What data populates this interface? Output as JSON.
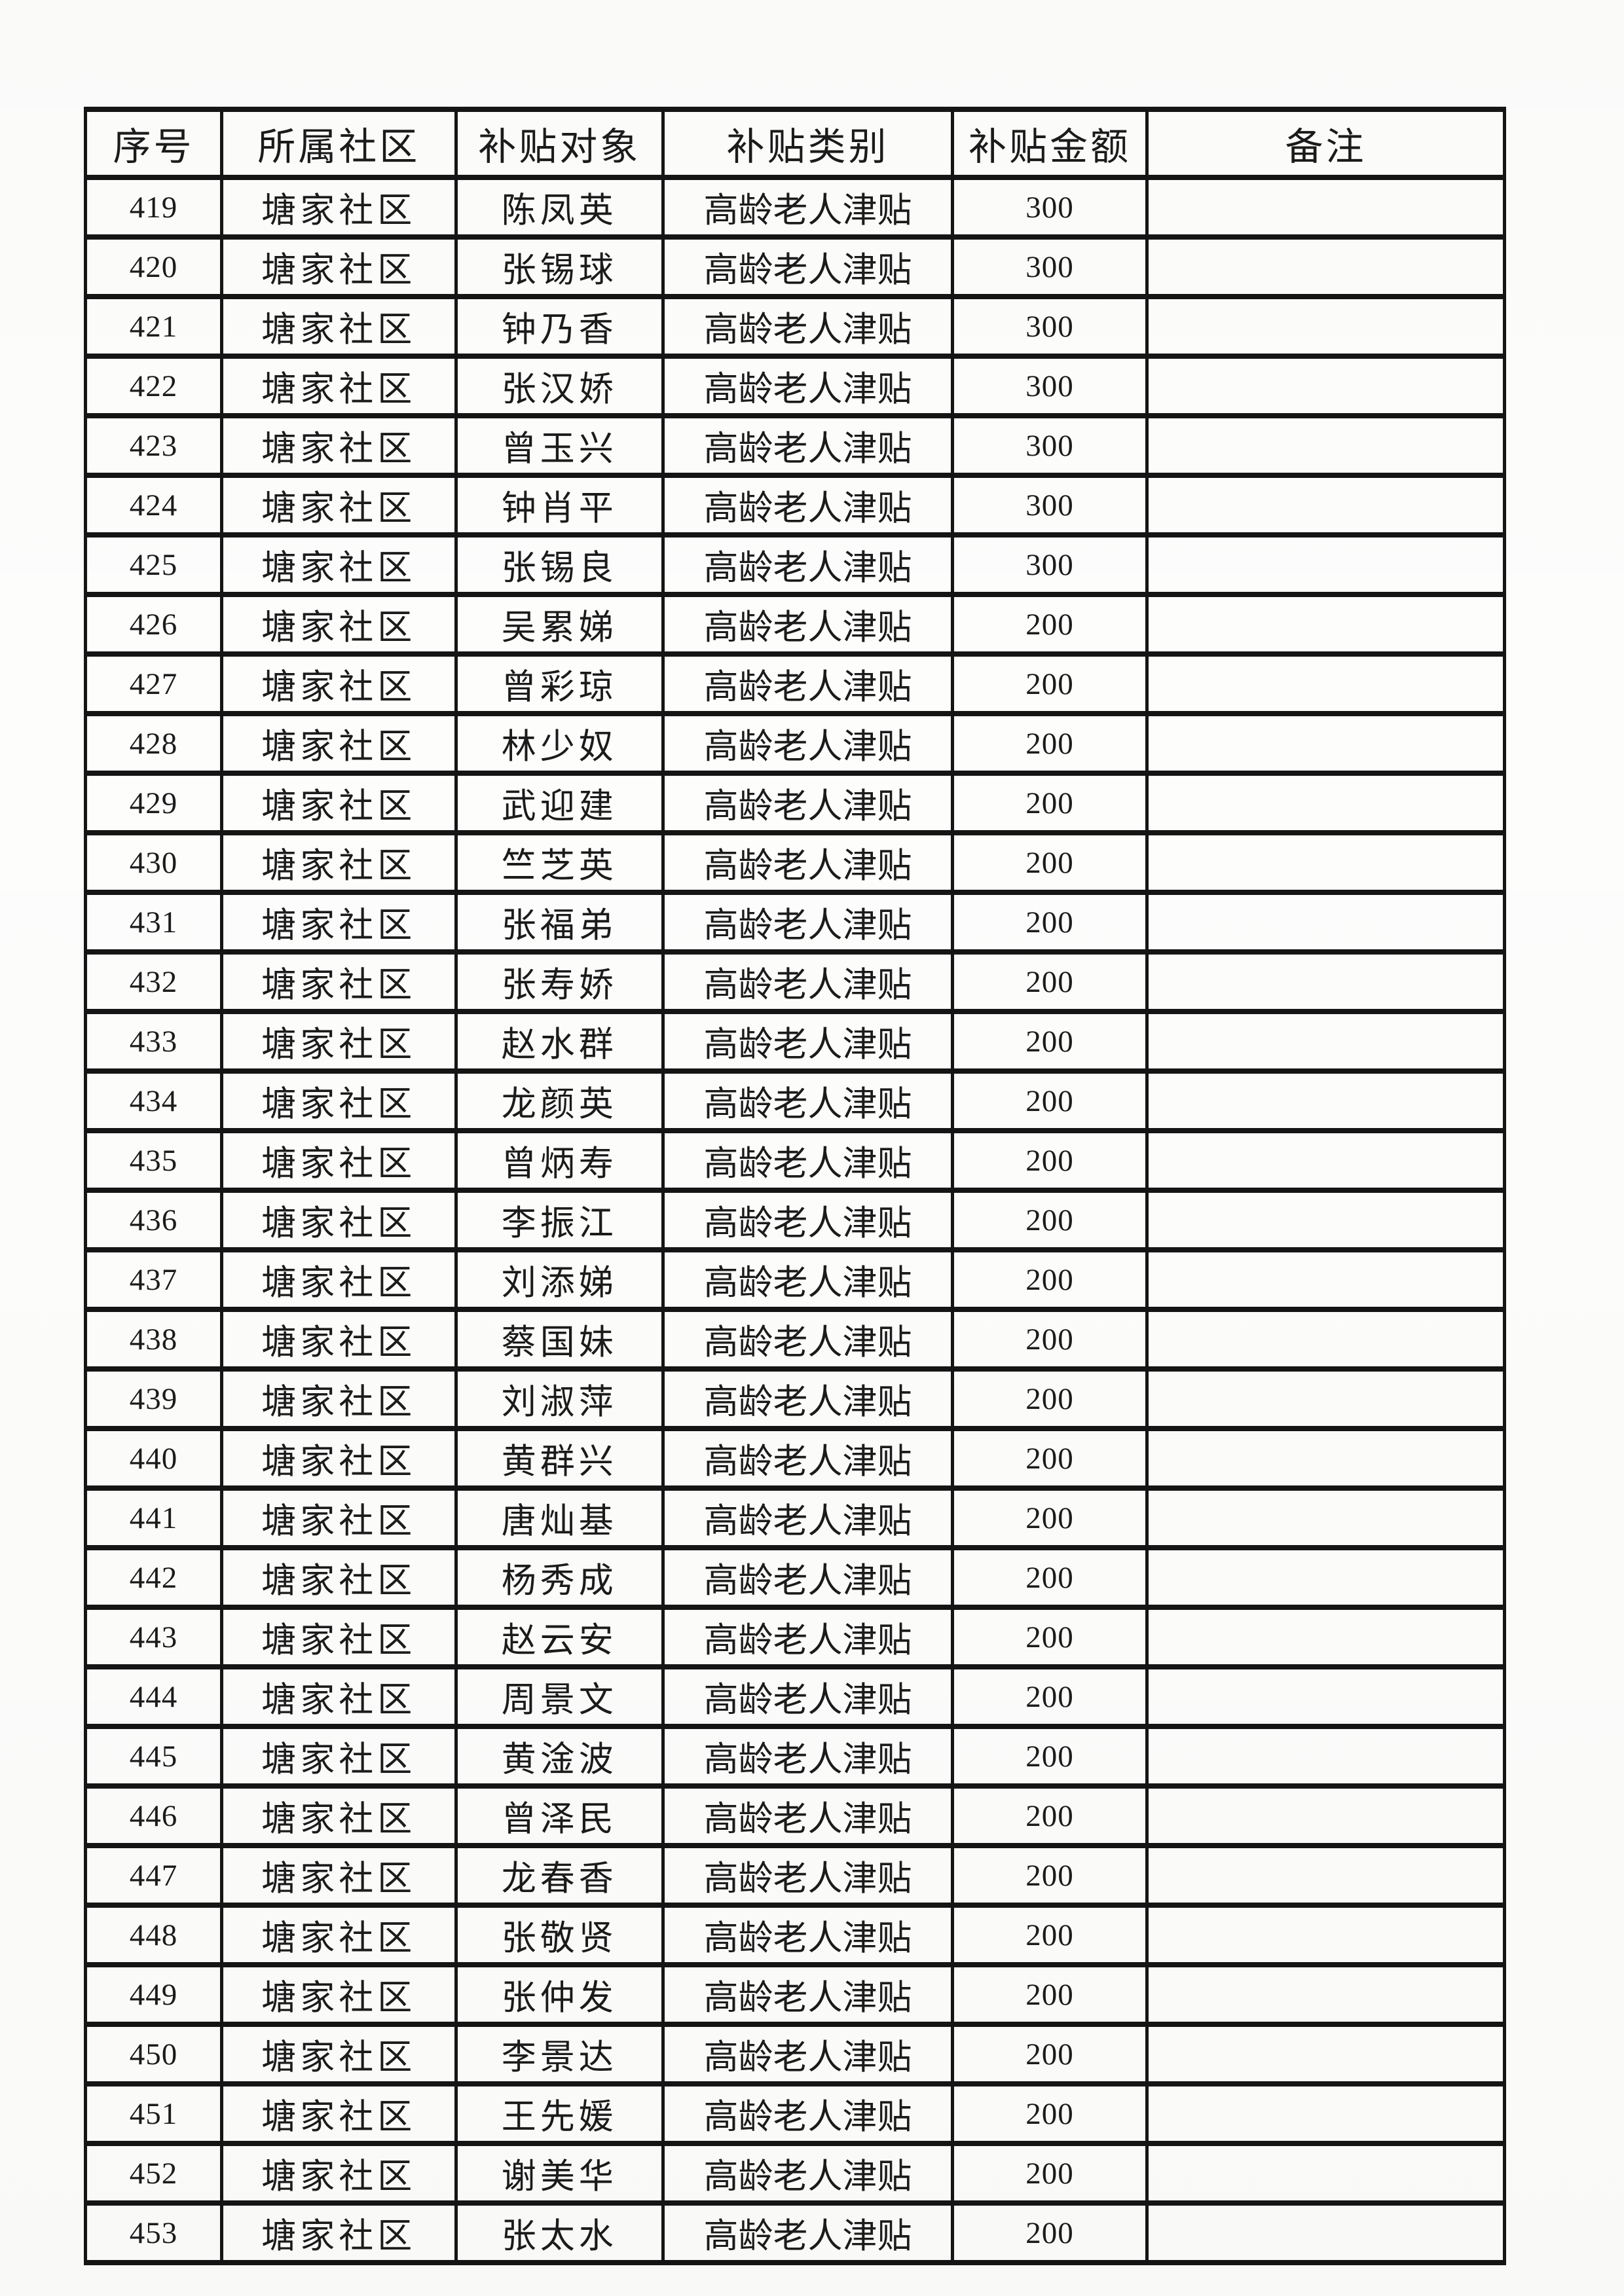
{
  "table": {
    "headers": [
      "序号",
      "所属社区",
      "补贴对象",
      "补贴类别",
      "补贴金额",
      "备注"
    ],
    "rows": [
      [
        "419",
        "塘家社区",
        "陈凤英",
        "高龄老人津贴",
        "300",
        ""
      ],
      [
        "420",
        "塘家社区",
        "张锡球",
        "高龄老人津贴",
        "300",
        ""
      ],
      [
        "421",
        "塘家社区",
        "钟乃香",
        "高龄老人津贴",
        "300",
        ""
      ],
      [
        "422",
        "塘家社区",
        "张汉娇",
        "高龄老人津贴",
        "300",
        ""
      ],
      [
        "423",
        "塘家社区",
        "曾玉兴",
        "高龄老人津贴",
        "300",
        ""
      ],
      [
        "424",
        "塘家社区",
        "钟肖平",
        "高龄老人津贴",
        "300",
        ""
      ],
      [
        "425",
        "塘家社区",
        "张锡良",
        "高龄老人津贴",
        "300",
        ""
      ],
      [
        "426",
        "塘家社区",
        "吴累娣",
        "高龄老人津贴",
        "200",
        ""
      ],
      [
        "427",
        "塘家社区",
        "曾彩琼",
        "高龄老人津贴",
        "200",
        ""
      ],
      [
        "428",
        "塘家社区",
        "林少奴",
        "高龄老人津贴",
        "200",
        ""
      ],
      [
        "429",
        "塘家社区",
        "武迎建",
        "高龄老人津贴",
        "200",
        ""
      ],
      [
        "430",
        "塘家社区",
        "竺芝英",
        "高龄老人津贴",
        "200",
        ""
      ],
      [
        "431",
        "塘家社区",
        "张福弟",
        "高龄老人津贴",
        "200",
        ""
      ],
      [
        "432",
        "塘家社区",
        "张寿娇",
        "高龄老人津贴",
        "200",
        ""
      ],
      [
        "433",
        "塘家社区",
        "赵水群",
        "高龄老人津贴",
        "200",
        ""
      ],
      [
        "434",
        "塘家社区",
        "龙颜英",
        "高龄老人津贴",
        "200",
        ""
      ],
      [
        "435",
        "塘家社区",
        "曾炳寿",
        "高龄老人津贴",
        "200",
        ""
      ],
      [
        "436",
        "塘家社区",
        "李振江",
        "高龄老人津贴",
        "200",
        ""
      ],
      [
        "437",
        "塘家社区",
        "刘添娣",
        "高龄老人津贴",
        "200",
        ""
      ],
      [
        "438",
        "塘家社区",
        "蔡国妹",
        "高龄老人津贴",
        "200",
        ""
      ],
      [
        "439",
        "塘家社区",
        "刘淑萍",
        "高龄老人津贴",
        "200",
        ""
      ],
      [
        "440",
        "塘家社区",
        "黄群兴",
        "高龄老人津贴",
        "200",
        ""
      ],
      [
        "441",
        "塘家社区",
        "唐灿基",
        "高龄老人津贴",
        "200",
        ""
      ],
      [
        "442",
        "塘家社区",
        "杨秀成",
        "高龄老人津贴",
        "200",
        ""
      ],
      [
        "443",
        "塘家社区",
        "赵云安",
        "高龄老人津贴",
        "200",
        ""
      ],
      [
        "444",
        "塘家社区",
        "周景文",
        "高龄老人津贴",
        "200",
        ""
      ],
      [
        "445",
        "塘家社区",
        "黄淦波",
        "高龄老人津贴",
        "200",
        ""
      ],
      [
        "446",
        "塘家社区",
        "曾泽民",
        "高龄老人津贴",
        "200",
        ""
      ],
      [
        "447",
        "塘家社区",
        "龙春香",
        "高龄老人津贴",
        "200",
        ""
      ],
      [
        "448",
        "塘家社区",
        "张敬贤",
        "高龄老人津贴",
        "200",
        ""
      ],
      [
        "449",
        "塘家社区",
        "张仲发",
        "高龄老人津贴",
        "200",
        ""
      ],
      [
        "450",
        "塘家社区",
        "李景达",
        "高龄老人津贴",
        "200",
        ""
      ],
      [
        "451",
        "塘家社区",
        "王先媛",
        "高龄老人津贴",
        "200",
        ""
      ],
      [
        "452",
        "塘家社区",
        "谢美华",
        "高龄老人津贴",
        "200",
        ""
      ],
      [
        "453",
        "塘家社区",
        "张太水",
        "高龄老人津贴",
        "200",
        ""
      ]
    ]
  },
  "colors": {
    "border": "#151515",
    "text": "#1b1b1b",
    "paper": "#fdfdfc"
  }
}
